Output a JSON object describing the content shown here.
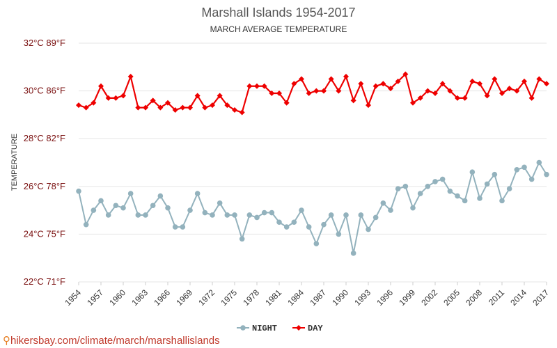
{
  "chart_data": {
    "type": "line",
    "title": "Marshall Islands 1954-2017",
    "subtitle": "MARCH AVERAGE TEMPERATURE",
    "ylabel": "TEMPERATURE",
    "ylim": [
      22,
      32
    ],
    "yticks": [
      {
        "value": 22,
        "label": "22°C 71°F"
      },
      {
        "value": 24,
        "label": "24°C 75°F"
      },
      {
        "value": 26,
        "label": "26°C 78°F"
      },
      {
        "value": 28,
        "label": "28°C 82°F"
      },
      {
        "value": 30,
        "label": "30°C 86°F"
      },
      {
        "value": 32,
        "label": "32°C 89°F"
      }
    ],
    "xticks": [
      1954,
      1957,
      1960,
      1963,
      1966,
      1969,
      1972,
      1975,
      1978,
      1981,
      1984,
      1987,
      1990,
      1993,
      1996,
      1999,
      2002,
      2005,
      2008,
      2011,
      2014,
      2017
    ],
    "x_start": 1954,
    "x_end": 2017,
    "series": [
      {
        "name": "NIGHT",
        "color": "#93b2bd",
        "marker": "circle",
        "values": [
          25.8,
          24.4,
          25.0,
          25.4,
          24.8,
          25.2,
          25.1,
          25.7,
          24.8,
          24.8,
          25.2,
          25.6,
          25.1,
          24.3,
          24.3,
          25.0,
          25.7,
          24.9,
          24.8,
          25.3,
          24.8,
          24.8,
          23.8,
          24.8,
          24.7,
          24.9,
          24.9,
          24.5,
          24.3,
          24.5,
          25.0,
          24.3,
          23.6,
          24.4,
          24.8,
          24.0,
          24.8,
          23.2,
          24.8,
          24.2,
          24.7,
          25.3,
          25.0,
          25.9,
          26.0,
          25.1,
          25.7,
          26.0,
          26.2,
          26.3,
          25.8,
          25.6,
          25.4,
          26.6,
          25.5,
          26.1,
          26.5,
          25.4,
          25.9,
          26.7,
          26.8,
          26.3,
          27.0,
          26.5
        ]
      },
      {
        "name": "DAY",
        "color": "#ee0000",
        "marker": "diamond",
        "values": [
          29.4,
          29.3,
          29.5,
          30.2,
          29.7,
          29.7,
          29.8,
          30.6,
          29.3,
          29.3,
          29.6,
          29.3,
          29.5,
          29.2,
          29.3,
          29.3,
          29.8,
          29.3,
          29.4,
          29.8,
          29.4,
          29.2,
          29.1,
          30.2,
          30.2,
          30.2,
          29.9,
          29.9,
          29.5,
          30.3,
          30.5,
          29.9,
          30.0,
          30.0,
          30.5,
          30.0,
          30.6,
          29.6,
          30.3,
          29.4,
          30.2,
          30.3,
          30.1,
          30.4,
          30.7,
          29.5,
          29.7,
          30.0,
          29.9,
          30.3,
          30.0,
          29.7,
          29.7,
          30.4,
          30.3,
          29.8,
          30.5,
          29.9,
          30.1,
          30.0,
          30.4,
          29.7,
          30.5,
          30.3
        ]
      }
    ]
  },
  "footer": {
    "url": "hikersbay.com/climate/march/marshallislands"
  }
}
